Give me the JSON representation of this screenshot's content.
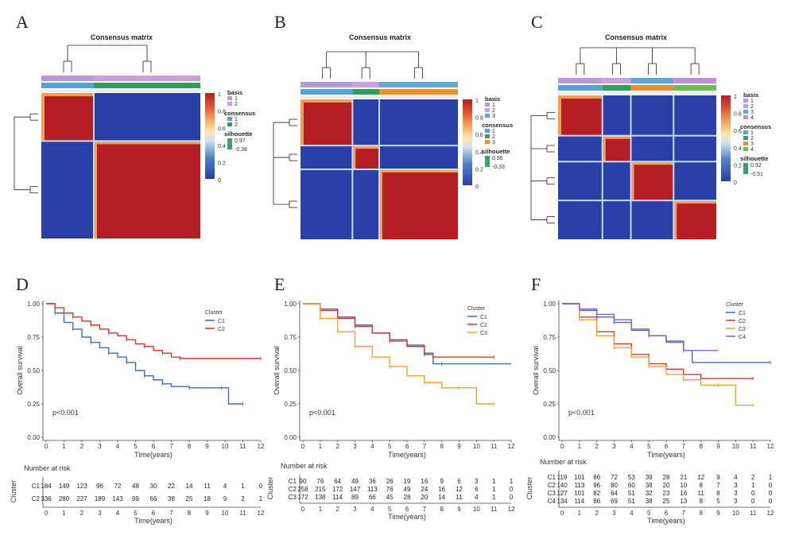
{
  "colors": {
    "heat_low": "#2b3fa8",
    "heat_high": "#b51f24",
    "basis_1": "#b79ad6",
    "basis_2": "#c8a0e0",
    "basis_3": "#5ea6d6",
    "basis_4": "#c48fd0",
    "cons_1": "#5aa0d8",
    "cons_2": "#2f9e5e",
    "cons_3": "#f08c2c",
    "cons_4": "#6bbf4f",
    "km_c1": "#3b6bc4",
    "km_c2": "#e33030",
    "km_c3": "#f4a324",
    "km_c4": "#8a5bbf"
  },
  "panels": {
    "A": {
      "label": "A",
      "title": "Consensus matrix",
      "colorbar_ticks": [
        "1",
        "0.8",
        "0.6",
        "0.4",
        "0.2",
        "0"
      ],
      "legend": {
        "basis_title": "basis",
        "basis_items": [
          "1",
          "2"
        ],
        "consensus_title": "consensus",
        "consensus_items": [
          "1",
          "2"
        ],
        "silhouette_title": "silhouette",
        "silhouette_max": "0.97",
        "silhouette_min": "-0.38"
      },
      "cluster_fracs": [
        0.33,
        0.67
      ]
    },
    "B": {
      "label": "B",
      "title": "Consensus matrix",
      "colorbar_ticks": [
        "1",
        "0.8",
        "0.6",
        "0.4",
        "0.2",
        "0"
      ],
      "legend": {
        "basis_title": "basis",
        "basis_items": [
          "1",
          "2",
          "3"
        ],
        "consensus_title": "consensus",
        "consensus_items": [
          "1",
          "2",
          "3"
        ],
        "silhouette_title": "silhouette",
        "silhouette_max": "0.96",
        "silhouette_min": "-0.33"
      },
      "cluster_fracs": [
        0.33,
        0.17,
        0.5
      ]
    },
    "C": {
      "label": "C",
      "title": "Consensus matrix",
      "colorbar_ticks": [
        "1",
        "0.8",
        "0.6",
        "0.4",
        "0.2",
        "0"
      ],
      "legend": {
        "basis_title": "basis",
        "basis_items": [
          "1",
          "2",
          "3",
          "4"
        ],
        "consensus_title": "consensus",
        "consensus_items": [
          "1",
          "2",
          "3",
          "4"
        ],
        "silhouette_title": "silhouette",
        "silhouette_max": "0.92",
        "silhouette_min": "-0.51"
      },
      "cluster_fracs": [
        0.28,
        0.18,
        0.27,
        0.27
      ]
    },
    "D": {
      "label": "D"
    },
    "E": {
      "label": "E"
    },
    "F": {
      "label": "F"
    }
  },
  "chart_data": [
    {
      "type": "line",
      "panel": "D",
      "ylabel": "Overall survival",
      "xlabel": "Time(years)",
      "ylim": [
        0,
        1
      ],
      "xlim": [
        0,
        12
      ],
      "y_ticks": [
        "0.00",
        "0.25",
        "0.50",
        "0.75",
        "1.00"
      ],
      "x_ticks": [
        "0",
        "1",
        "2",
        "3",
        "4",
        "5",
        "6",
        "7",
        "8",
        "9",
        "10",
        "11",
        "12"
      ],
      "pvalue": "p<0.001",
      "legend_title": "Cluster",
      "series": [
        {
          "name": "C1",
          "color_key": "km_c1",
          "x": [
            0,
            0.5,
            1,
            1.5,
            2,
            2.5,
            3,
            3.5,
            4,
            4.5,
            5,
            5.5,
            6,
            6.5,
            7,
            8,
            9,
            9.8,
            10.2,
            11
          ],
          "y": [
            1,
            0.93,
            0.86,
            0.81,
            0.75,
            0.71,
            0.67,
            0.63,
            0.6,
            0.56,
            0.5,
            0.46,
            0.43,
            0.4,
            0.38,
            0.37,
            0.37,
            0.37,
            0.25,
            0.25
          ]
        },
        {
          "name": "C2",
          "color_key": "km_c2",
          "x": [
            0,
            0.5,
            1,
            1.5,
            2,
            2.5,
            3,
            3.5,
            4,
            4.5,
            5,
            5.5,
            6,
            6.5,
            7,
            7.5,
            8,
            12
          ],
          "y": [
            1,
            0.97,
            0.93,
            0.9,
            0.87,
            0.84,
            0.81,
            0.78,
            0.76,
            0.73,
            0.7,
            0.68,
            0.65,
            0.63,
            0.6,
            0.59,
            0.59,
            0.59
          ]
        }
      ],
      "risk_table": {
        "title": "Number at risk",
        "ylabel": "Cluster",
        "rows": [
          {
            "name": "C1",
            "values": [
              "184",
              "149",
              "123",
              "96",
              "72",
              "48",
              "30",
              "22",
              "14",
              "11",
              "4",
              "1",
              "0"
            ]
          },
          {
            "name": "C2",
            "values": [
              "336",
              "280",
              "227",
              "189",
              "143",
              "99",
              "66",
              "38",
              "25",
              "18",
              "9",
              "2",
              "1"
            ]
          }
        ]
      }
    },
    {
      "type": "line",
      "panel": "E",
      "ylabel": "Overall survival",
      "xlabel": "Time(years)",
      "ylim": [
        0,
        1
      ],
      "xlim": [
        0,
        12
      ],
      "y_ticks": [
        "0.00",
        "0.25",
        "0.50",
        "0.75",
        "1.00"
      ],
      "x_ticks": [
        "0",
        "1",
        "2",
        "3",
        "4",
        "5",
        "6",
        "7",
        "8",
        "9",
        "10",
        "11",
        "12"
      ],
      "pvalue": "p<0.001",
      "legend_title": "Cluster",
      "series": [
        {
          "name": "C1",
          "color_key": "km_c1",
          "x": [
            0,
            1,
            2,
            3,
            4,
            5,
            6,
            7,
            7.5,
            8,
            12
          ],
          "y": [
            1,
            0.96,
            0.9,
            0.84,
            0.78,
            0.73,
            0.69,
            0.63,
            0.55,
            0.55,
            0.55
          ]
        },
        {
          "name": "C2",
          "color_key": "km_c2",
          "x": [
            0,
            1,
            2,
            3,
            4,
            5,
            6,
            7,
            7.5,
            11
          ],
          "y": [
            1,
            0.95,
            0.89,
            0.83,
            0.78,
            0.72,
            0.68,
            0.62,
            0.6,
            0.6
          ]
        },
        {
          "name": "C3",
          "color_key": "km_c3",
          "x": [
            0,
            1,
            2,
            3,
            4,
            5,
            6,
            7,
            8,
            9,
            10,
            11
          ],
          "y": [
            1,
            0.89,
            0.79,
            0.68,
            0.6,
            0.53,
            0.46,
            0.41,
            0.37,
            0.37,
            0.25,
            0.25
          ]
        }
      ],
      "risk_table": {
        "title": "Number at risk",
        "ylabel": "Cluster",
        "rows": [
          {
            "name": "C1",
            "values": [
              "90",
              "76",
              "64",
              "49",
              "36",
              "26",
              "19",
              "16",
              "9",
              "6",
              "3",
              "1",
              "1"
            ]
          },
          {
            "name": "C2",
            "values": [
              "258",
              "215",
              "172",
              "147",
              "113",
              "76",
              "49",
              "24",
              "16",
              "12",
              "6",
              "1",
              "0"
            ]
          },
          {
            "name": "C3",
            "values": [
              "172",
              "138",
              "114",
              "89",
              "66",
              "45",
              "28",
              "20",
              "14",
              "11",
              "4",
              "1",
              "0"
            ]
          }
        ]
      }
    },
    {
      "type": "line",
      "panel": "F",
      "ylabel": "Overall survival",
      "xlabel": "Time(years)",
      "ylim": [
        0,
        1
      ],
      "xlim": [
        0,
        12
      ],
      "y_ticks": [
        "0.00",
        "0.25",
        "0.50",
        "0.75",
        "1.00"
      ],
      "x_ticks": [
        "0",
        "1",
        "2",
        "3",
        "4",
        "5",
        "6",
        "7",
        "8",
        "9",
        "10",
        "11",
        "12"
      ],
      "pvalue": "p<0.001",
      "legend_title": "Cluster",
      "series": [
        {
          "name": "C1",
          "color_key": "km_c1",
          "x": [
            0,
            1,
            2,
            3,
            4,
            5,
            6,
            7,
            7.5,
            12
          ],
          "y": [
            1,
            0.95,
            0.9,
            0.86,
            0.8,
            0.76,
            0.72,
            0.65,
            0.56,
            0.56
          ]
        },
        {
          "name": "C2",
          "color_key": "km_c2",
          "x": [
            0,
            1,
            2,
            3,
            4,
            5,
            6,
            7,
            8,
            11
          ],
          "y": [
            1,
            0.9,
            0.79,
            0.7,
            0.62,
            0.55,
            0.51,
            0.47,
            0.44,
            0.44
          ]
        },
        {
          "name": "C3",
          "color_key": "km_c3",
          "x": [
            0,
            1,
            2,
            3,
            4,
            5,
            6,
            7,
            8,
            9,
            10,
            11
          ],
          "y": [
            1,
            0.88,
            0.76,
            0.67,
            0.6,
            0.53,
            0.47,
            0.43,
            0.39,
            0.39,
            0.24,
            0.24
          ]
        },
        {
          "name": "C4",
          "color_key": "km_c4",
          "x": [
            0,
            1,
            2,
            3,
            4,
            5,
            6,
            7,
            9
          ],
          "y": [
            1,
            0.96,
            0.92,
            0.88,
            0.81,
            0.76,
            0.71,
            0.65,
            0.65
          ]
        }
      ],
      "risk_table": {
        "title": "Number at risk",
        "ylabel": "Cluster",
        "rows": [
          {
            "name": "C1",
            "values": [
              "119",
              "101",
              "86",
              "72",
              "53",
              "39",
              "28",
              "21",
              "12",
              "9",
              "4",
              "2",
              "1"
            ]
          },
          {
            "name": "C2",
            "values": [
              "140",
              "113",
              "96",
              "80",
              "60",
              "38",
              "20",
              "10",
              "8",
              "7",
              "3",
              "1",
              "0"
            ]
          },
          {
            "name": "C3",
            "values": [
              "127",
              "101",
              "82",
              "64",
              "51",
              "32",
              "23",
              "16",
              "11",
              "8",
              "3",
              "0",
              "0"
            ]
          },
          {
            "name": "C4",
            "values": [
              "134",
              "114",
              "86",
              "69",
              "51",
              "38",
              "25",
              "13",
              "8",
              "5",
              "3",
              "0",
              "0"
            ]
          }
        ]
      }
    }
  ]
}
